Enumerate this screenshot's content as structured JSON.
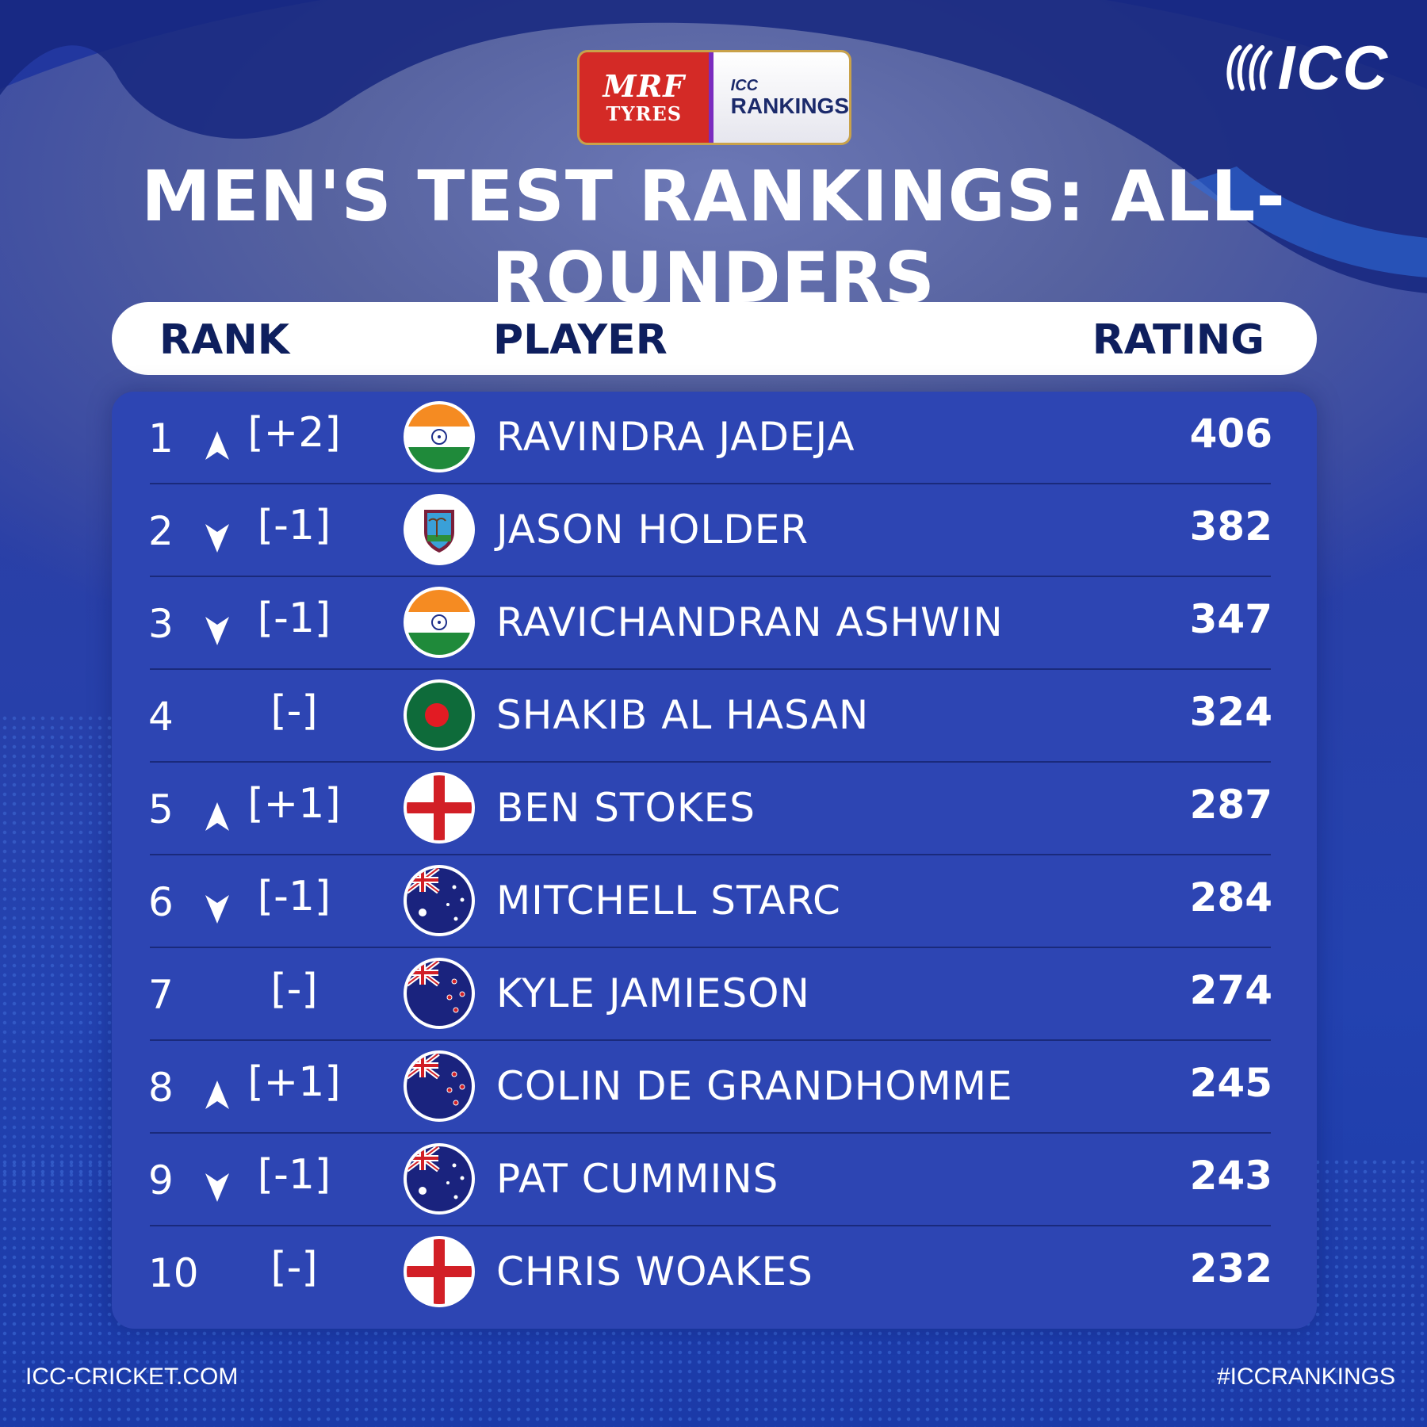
{
  "sponsor": {
    "mrf_line1": "MRF",
    "mrf_line2": "TYRES",
    "icc_small": "ICC",
    "rankings": "RANKINGS"
  },
  "brand": {
    "icc": "ICC"
  },
  "title": "MEN'S TEST RANKINGS: ALL-ROUNDERS",
  "headers": {
    "rank": "RANK",
    "player": "PLAYER",
    "rating": "RATING"
  },
  "rows": [
    {
      "rank": "1",
      "trend": "up",
      "change": "[+2]",
      "flag": "india-flag-icon",
      "player": "RAVINDRA JADEJA",
      "rating": "406"
    },
    {
      "rank": "2",
      "trend": "down",
      "change": "[-1]",
      "flag": "west-indies-flag-icon",
      "player": "JASON HOLDER",
      "rating": "382"
    },
    {
      "rank": "3",
      "trend": "down",
      "change": "[-1]",
      "flag": "india-flag-icon",
      "player": "RAVICHANDRAN ASHWIN",
      "rating": "347"
    },
    {
      "rank": "4",
      "trend": "none",
      "change": "[-]",
      "flag": "bangladesh-flag-icon",
      "player": "SHAKIB AL HASAN",
      "rating": "324"
    },
    {
      "rank": "5",
      "trend": "up",
      "change": "[+1]",
      "flag": "england-flag-icon",
      "player": "BEN STOKES",
      "rating": "287"
    },
    {
      "rank": "6",
      "trend": "down",
      "change": "[-1]",
      "flag": "australia-flag-icon",
      "player": "MITCHELL STARC",
      "rating": "284"
    },
    {
      "rank": "7",
      "trend": "none",
      "change": "[-]",
      "flag": "new-zealand-flag-icon",
      "player": "KYLE JAMIESON",
      "rating": "274"
    },
    {
      "rank": "8",
      "trend": "up",
      "change": "[+1]",
      "flag": "new-zealand-flag-icon",
      "player": "COLIN DE GRANDHOMME",
      "rating": "245"
    },
    {
      "rank": "9",
      "trend": "down",
      "change": "[-1]",
      "flag": "australia-flag-icon",
      "player": "PAT CUMMINS",
      "rating": "243"
    },
    {
      "rank": "10",
      "trend": "none",
      "change": "[-]",
      "flag": "england-flag-icon",
      "player": "CHRIS WOAKES",
      "rating": "232"
    }
  ],
  "footer": {
    "left": "ICC-CRICKET.COM",
    "right": "#ICCRANKINGS"
  },
  "colors": {
    "panel": "#2d45b3",
    "header_text": "#0e1f5e",
    "text": "#ffffff"
  }
}
